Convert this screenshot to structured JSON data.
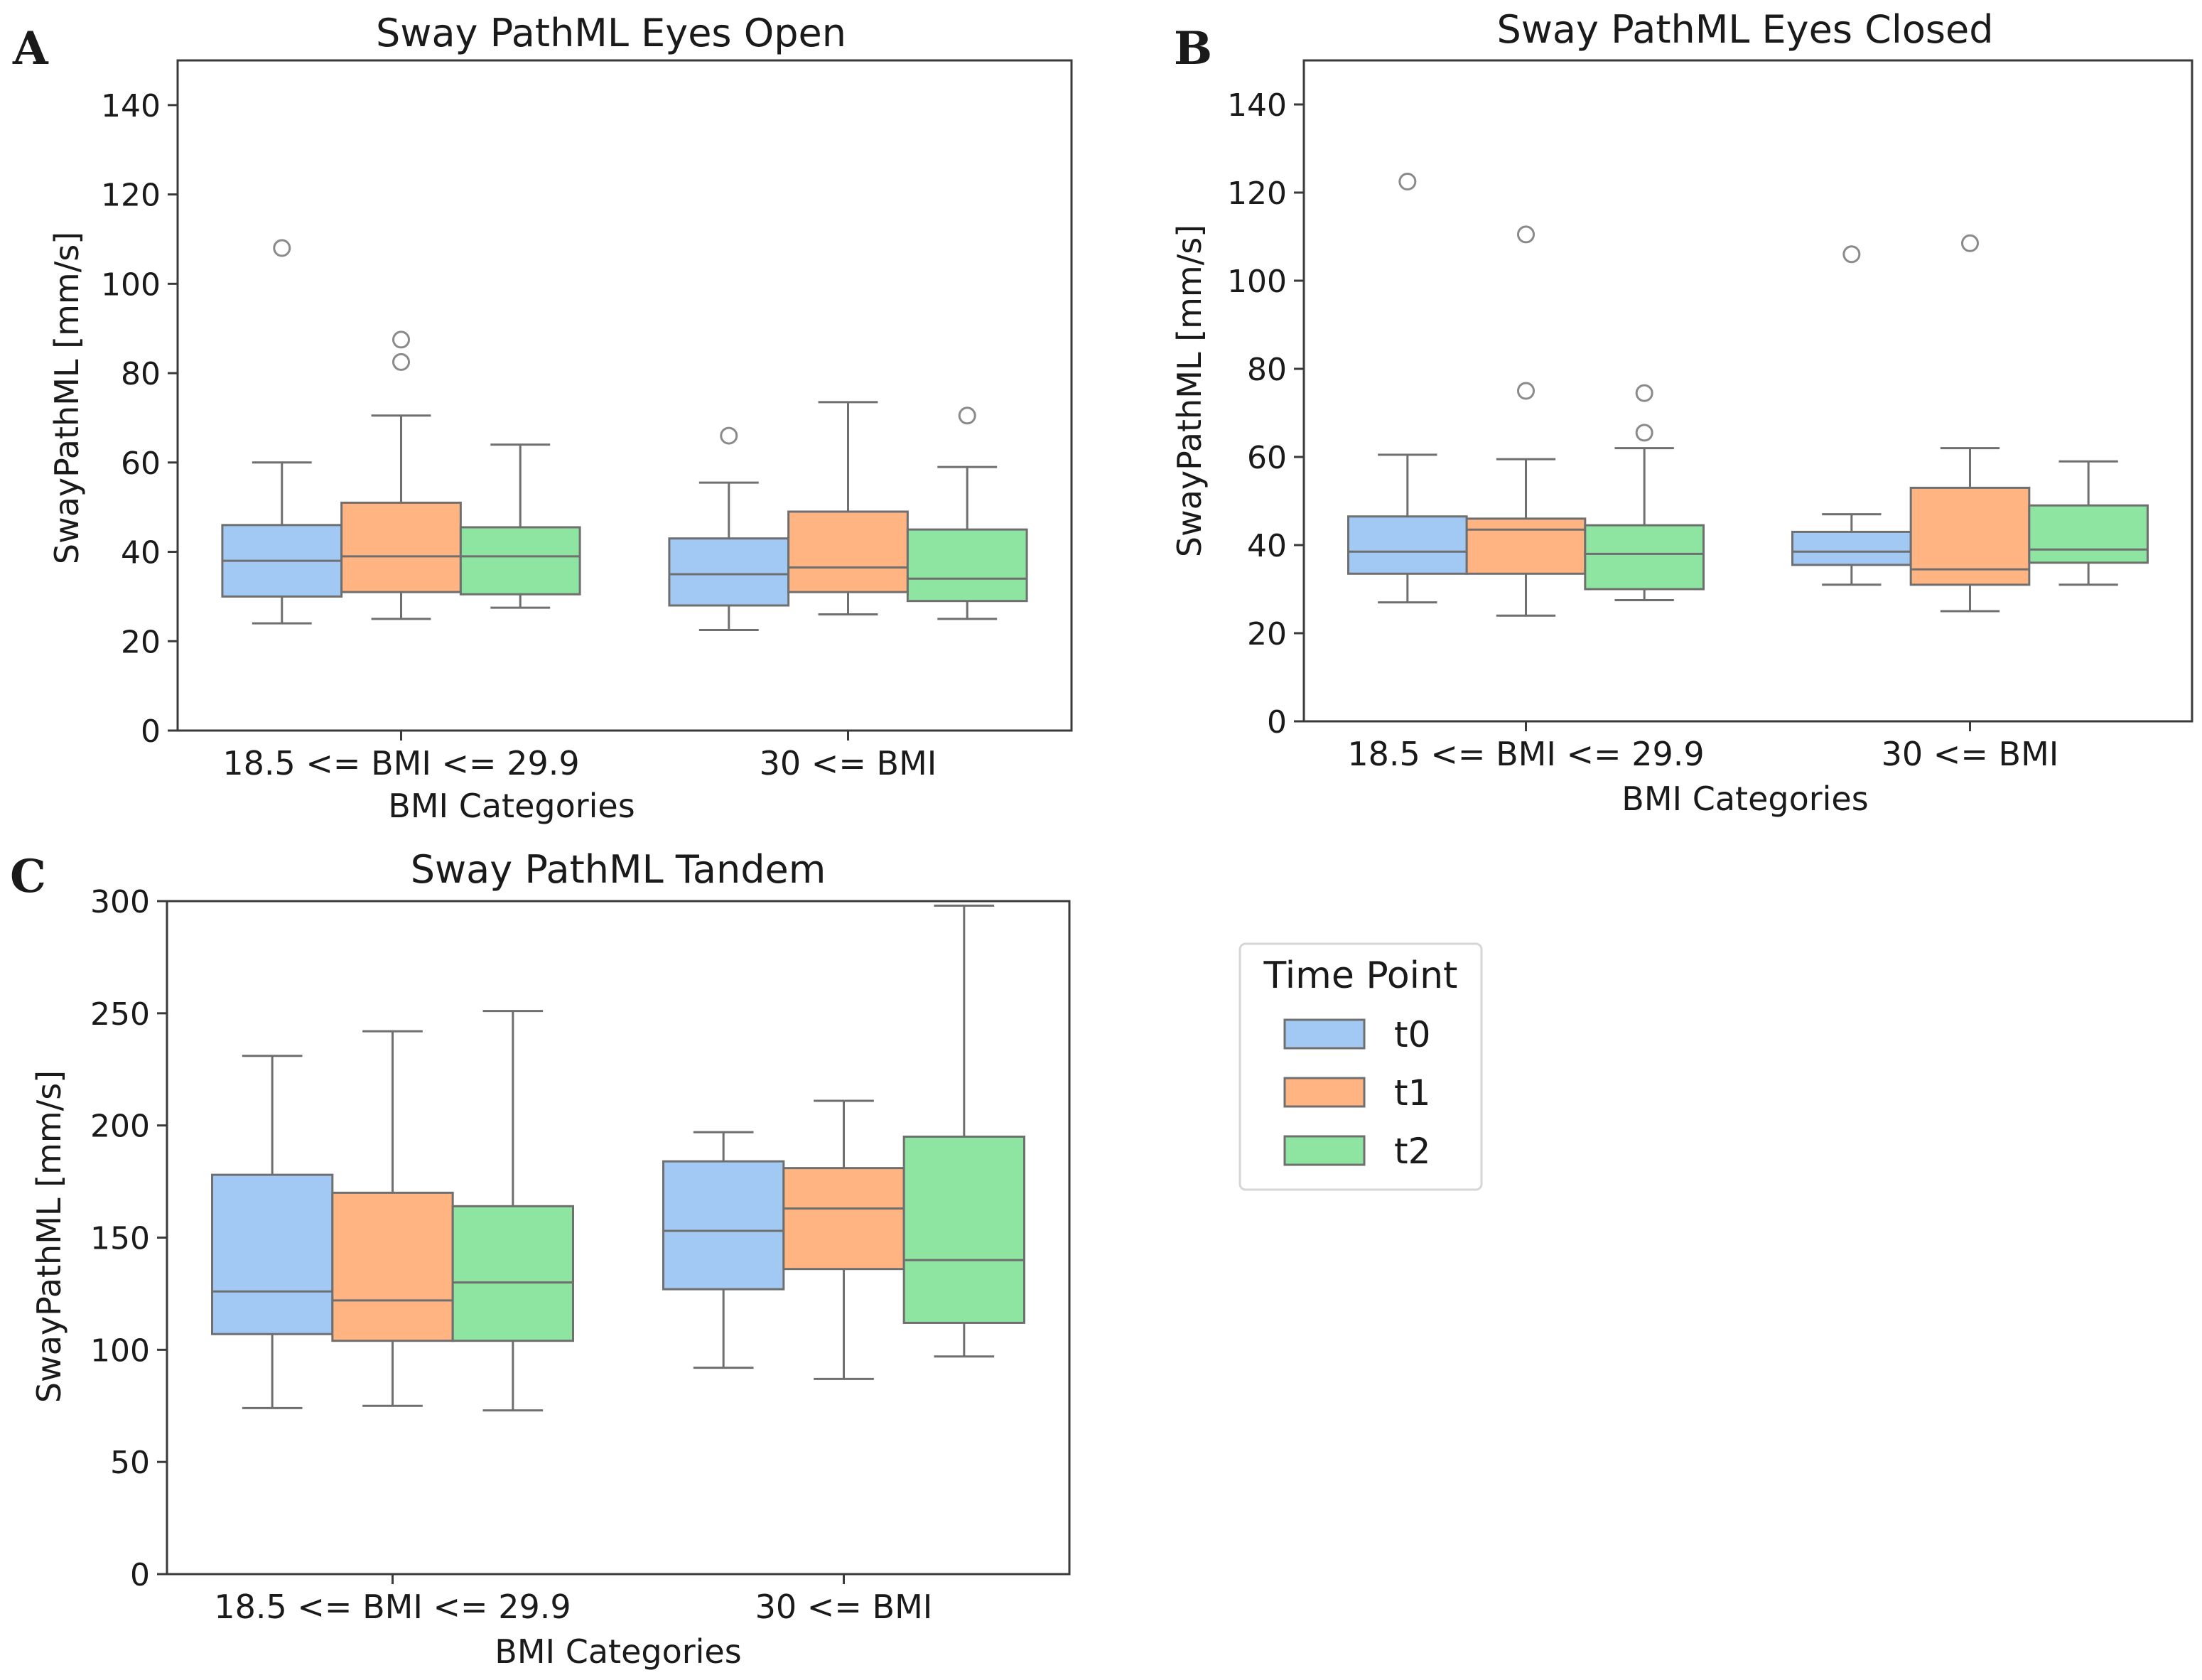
{
  "figure": {
    "palette": {
      "t0": "#a1c9f4",
      "t1": "#ffb482",
      "t2": "#8de5a1",
      "edge": "#6f6f6f",
      "flier_edge": "#8a8a8a"
    }
  },
  "legend": {
    "title": "Time Point",
    "entries": [
      {
        "label": "t0",
        "color": "#a1c9f4"
      },
      {
        "label": "t1",
        "color": "#ffb482"
      },
      {
        "label": "t2",
        "color": "#8de5a1"
      }
    ]
  },
  "chart_data": [
    {
      "panel": "A",
      "type": "box",
      "title": "Sway PathML Eyes Open",
      "xlabel": "BMI Categories",
      "ylabel": "SwayPathML [mm/s]",
      "ylim": [
        0,
        150
      ],
      "yticks": [
        0,
        20,
        40,
        60,
        80,
        100,
        120,
        140
      ],
      "categories": [
        "18.5 <= BMI <= 29.9",
        "30 <= BMI"
      ],
      "series": [
        {
          "name": "t0",
          "boxes": [
            {
              "whisker_low": 24,
              "q1": 30,
              "median": 38,
              "q3": 46,
              "whisker_high": 60,
              "outliers": [
                108
              ]
            },
            {
              "whisker_low": 22.5,
              "q1": 28,
              "median": 35,
              "q3": 43,
              "whisker_high": 55.5,
              "outliers": [
                66
              ]
            }
          ]
        },
        {
          "name": "t1",
          "boxes": [
            {
              "whisker_low": 25,
              "q1": 31,
              "median": 39,
              "q3": 51,
              "whisker_high": 70.5,
              "outliers": [
                82.5,
                87.5
              ]
            },
            {
              "whisker_low": 26,
              "q1": 31,
              "median": 36.5,
              "q3": 49,
              "whisker_high": 73.5,
              "outliers": []
            }
          ]
        },
        {
          "name": "t2",
          "boxes": [
            {
              "whisker_low": 27.5,
              "q1": 30.5,
              "median": 39,
              "q3": 45.5,
              "whisker_high": 64,
              "outliers": []
            },
            {
              "whisker_low": 25,
              "q1": 29,
              "median": 34,
              "q3": 45,
              "whisker_high": 59,
              "outliers": [
                70.5
              ]
            }
          ]
        }
      ]
    },
    {
      "panel": "B",
      "type": "box",
      "title": "Sway PathML Eyes Closed",
      "xlabel": "BMI Categories",
      "ylabel": "SwayPathML [mm/s]",
      "ylim": [
        0,
        150
      ],
      "yticks": [
        0,
        20,
        40,
        60,
        80,
        100,
        120,
        140
      ],
      "categories": [
        "18.5 <= BMI <= 29.9",
        "30 <= BMI"
      ],
      "series": [
        {
          "name": "t0",
          "boxes": [
            {
              "whisker_low": 27,
              "q1": 33.5,
              "median": 38.5,
              "q3": 46.5,
              "whisker_high": 60.5,
              "outliers": [
                122.5
              ]
            },
            {
              "whisker_low": 31,
              "q1": 35.5,
              "median": 38.5,
              "q3": 43,
              "whisker_high": 47,
              "outliers": [
                106
              ]
            }
          ]
        },
        {
          "name": "t1",
          "boxes": [
            {
              "whisker_low": 24,
              "q1": 33.5,
              "median": 43.5,
              "q3": 46,
              "whisker_high": 59.5,
              "outliers": [
                75,
                110.5
              ]
            },
            {
              "whisker_low": 25,
              "q1": 31,
              "median": 34.5,
              "q3": 53,
              "whisker_high": 62,
              "outliers": [
                108.5
              ]
            }
          ]
        },
        {
          "name": "t2",
          "boxes": [
            {
              "whisker_low": 27.5,
              "q1": 30,
              "median": 38,
              "q3": 44.5,
              "whisker_high": 62,
              "outliers": [
                65.5,
                74.5
              ]
            },
            {
              "whisker_low": 31,
              "q1": 36,
              "median": 39,
              "q3": 49,
              "whisker_high": 59,
              "outliers": []
            }
          ]
        }
      ]
    },
    {
      "panel": "C",
      "type": "box",
      "title": "Sway PathML Tandem",
      "xlabel": "BMI Categories",
      "ylabel": "SwayPathML [mm/s]",
      "ylim": [
        0,
        300
      ],
      "yticks": [
        0,
        50,
        100,
        150,
        200,
        250,
        300
      ],
      "categories": [
        "18.5 <= BMI <= 29.9",
        "30 <= BMI"
      ],
      "series": [
        {
          "name": "t0",
          "boxes": [
            {
              "whisker_low": 74,
              "q1": 107,
              "median": 126,
              "q3": 178,
              "whisker_high": 231,
              "outliers": []
            },
            {
              "whisker_low": 92,
              "q1": 127,
              "median": 153,
              "q3": 184,
              "whisker_high": 197,
              "outliers": []
            }
          ]
        },
        {
          "name": "t1",
          "boxes": [
            {
              "whisker_low": 75,
              "q1": 104,
              "median": 122,
              "q3": 170,
              "whisker_high": 242,
              "outliers": []
            },
            {
              "whisker_low": 87,
              "q1": 136,
              "median": 163,
              "q3": 181,
              "whisker_high": 211,
              "outliers": []
            }
          ]
        },
        {
          "name": "t2",
          "boxes": [
            {
              "whisker_low": 73,
              "q1": 104,
              "median": 130,
              "q3": 164,
              "whisker_high": 251,
              "outliers": []
            },
            {
              "whisker_low": 97,
              "q1": 112,
              "median": 140,
              "q3": 195,
              "whisker_high": 298,
              "outliers": []
            }
          ]
        }
      ]
    }
  ]
}
